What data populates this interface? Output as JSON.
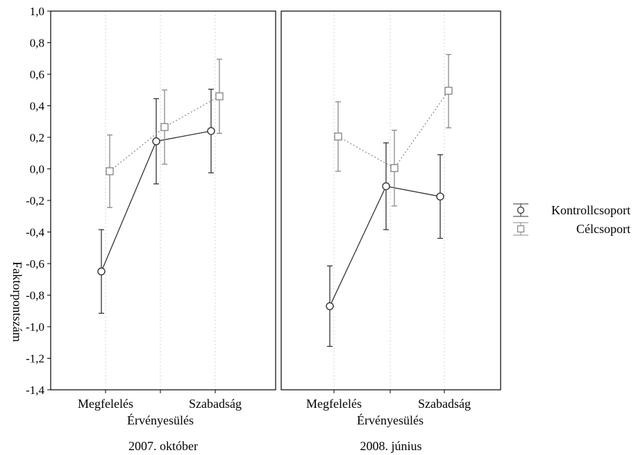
{
  "chart_data": {
    "type": "line",
    "ylabel": "Faktorpontszám",
    "ylim": [
      -1.4,
      1.0
    ],
    "yticks": [
      "1,0",
      "0,8",
      "0,6",
      "0,4",
      "0,2",
      "0,0",
      "-0,2",
      "-0,4",
      "-0,6",
      "-0,8",
      "-1,0",
      "-1,2",
      "-1,4"
    ],
    "ytick_values": [
      1.0,
      0.8,
      0.6,
      0.4,
      0.2,
      0.0,
      -0.2,
      -0.4,
      -0.6,
      -0.8,
      -1.0,
      -1.2,
      -1.4
    ],
    "categories": [
      "Megfelelés",
      "Érvényesülés",
      "Szabadság"
    ],
    "grid": true,
    "legend_position": "right",
    "panels": [
      {
        "title": "2007. október",
        "xlabel": "",
        "series": [
          {
            "name": "Kontrollcsoport",
            "marker": "circle",
            "line_style": "solid",
            "color": "#333333",
            "values": [
              -0.65,
              0.175,
              0.24
            ],
            "lower": [
              -0.915,
              -0.095,
              -0.025
            ],
            "upper": [
              -0.385,
              0.445,
              0.505
            ]
          },
          {
            "name": "Célcsoport",
            "marker": "square",
            "line_style": "dotted",
            "color": "#8a8a8a",
            "values": [
              -0.015,
              0.265,
              0.46
            ],
            "lower": [
              -0.245,
              0.03,
              0.225
            ],
            "upper": [
              0.215,
              0.5,
              0.695
            ]
          }
        ]
      },
      {
        "title": "2008. június",
        "xlabel": "",
        "series": [
          {
            "name": "Kontrollcsoport",
            "marker": "circle",
            "line_style": "solid",
            "color": "#333333",
            "values": [
              -0.87,
              -0.11,
              -0.175
            ],
            "lower": [
              -1.125,
              -0.385,
              -0.44
            ],
            "upper": [
              -0.615,
              0.165,
              0.09
            ]
          },
          {
            "name": "Célcsoport",
            "marker": "square",
            "line_style": "dotted",
            "color": "#8a8a8a",
            "values": [
              0.205,
              0.005,
              0.495
            ],
            "lower": [
              -0.015,
              -0.235,
              0.26
            ],
            "upper": [
              0.425,
              0.245,
              0.725
            ]
          }
        ]
      }
    ],
    "legend": [
      {
        "label": "Kontrollcsoport",
        "marker": "circle"
      },
      {
        "label": "Célcsoport",
        "marker": "square"
      }
    ]
  }
}
